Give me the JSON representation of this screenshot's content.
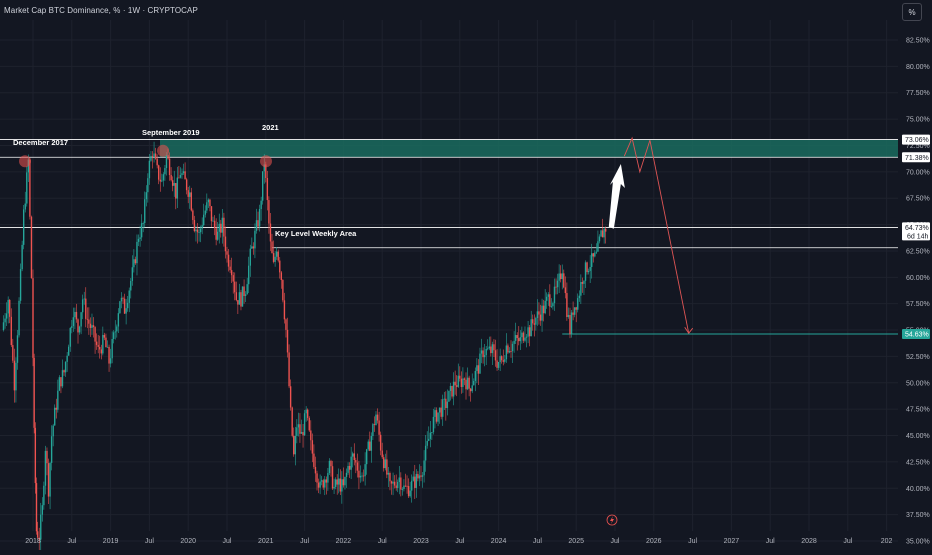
{
  "header": {
    "title": "Market Cap BTC Dominance, % · 1W · CRYPTOCAP",
    "scale_button": "%"
  },
  "colors": {
    "background": "#131722",
    "up": "#26a69a",
    "down": "#ef5350",
    "zone": "#1a6b5e",
    "line": "#ffffff",
    "target_line": "#26a69a",
    "label_green": "#26a69a"
  },
  "chart_data": {
    "type": "candlestick",
    "title": "Market Cap BTC Dominance, % · 1W · CRYPTOCAP",
    "y_axis": {
      "ticks": [
        "82.50%",
        "80.00%",
        "77.50%",
        "75.00%",
        "72.50%",
        "70.00%",
        "67.50%",
        "65.00%",
        "62.50%",
        "60.00%",
        "57.50%",
        "55.00%",
        "52.50%",
        "50.00%",
        "47.50%",
        "45.00%",
        "42.50%",
        "40.00%",
        "37.50%",
        "35.00%"
      ],
      "ylim": [
        35,
        85
      ]
    },
    "x_axis": {
      "ticks": [
        "2018",
        "Jul",
        "2019",
        "Jul",
        "2020",
        "Jul",
        "2021",
        "Jul",
        "2022",
        "Jul",
        "2023",
        "Jul",
        "2024",
        "Jul",
        "2025",
        "Jul",
        "2026",
        "Jul",
        "2027",
        "Jul",
        "2028",
        "Jul",
        "202"
      ],
      "tick_years": [
        2018,
        2018.5,
        2019,
        2019.5,
        2020,
        2020.5,
        2021,
        2021.5,
        2022,
        2022.5,
        2023,
        2023.5,
        2024,
        2024.5,
        2025,
        2025.5,
        2026,
        2026.5,
        2027,
        2027.5,
        2028,
        2028.5,
        2029
      ],
      "xlim": [
        2017.6,
        2029.2
      ]
    },
    "price_path": [
      [
        2017.62,
        55
      ],
      [
        2017.7,
        58
      ],
      [
        2017.78,
        50
      ],
      [
        2017.86,
        60
      ],
      [
        2017.9,
        66
      ],
      [
        2017.96,
        71
      ],
      [
        2018.0,
        60
      ],
      [
        2018.03,
        45
      ],
      [
        2018.06,
        36
      ],
      [
        2018.1,
        35.5
      ],
      [
        2018.14,
        38
      ],
      [
        2018.18,
        44
      ],
      [
        2018.22,
        40
      ],
      [
        2018.26,
        45
      ],
      [
        2018.3,
        47
      ],
      [
        2018.36,
        50
      ],
      [
        2018.42,
        51
      ],
      [
        2018.48,
        54
      ],
      [
        2018.54,
        57
      ],
      [
        2018.6,
        55
      ],
      [
        2018.66,
        58
      ],
      [
        2018.72,
        56
      ],
      [
        2018.78,
        55
      ],
      [
        2018.86,
        53
      ],
      [
        2018.94,
        54
      ],
      [
        2019.0,
        52
      ],
      [
        2019.08,
        55
      ],
      [
        2019.14,
        58
      ],
      [
        2019.2,
        57
      ],
      [
        2019.26,
        59
      ],
      [
        2019.32,
        61
      ],
      [
        2019.38,
        64
      ],
      [
        2019.44,
        65
      ],
      [
        2019.5,
        70
      ],
      [
        2019.56,
        72
      ],
      [
        2019.62,
        70
      ],
      [
        2019.68,
        69
      ],
      [
        2019.74,
        71.5
      ],
      [
        2019.8,
        70
      ],
      [
        2019.86,
        68
      ],
      [
        2019.92,
        70
      ],
      [
        2019.98,
        69
      ],
      [
        2020.04,
        68
      ],
      [
        2020.1,
        65
      ],
      [
        2020.16,
        64
      ],
      [
        2020.22,
        66
      ],
      [
        2020.28,
        67
      ],
      [
        2020.34,
        65
      ],
      [
        2020.4,
        64
      ],
      [
        2020.46,
        65
      ],
      [
        2020.52,
        62
      ],
      [
        2020.58,
        61
      ],
      [
        2020.64,
        58
      ],
      [
        2020.7,
        58
      ],
      [
        2020.76,
        59
      ],
      [
        2020.82,
        62
      ],
      [
        2020.88,
        64
      ],
      [
        2020.94,
        66
      ],
      [
        2021.0,
        71
      ],
      [
        2021.04,
        67
      ],
      [
        2021.08,
        63
      ],
      [
        2021.12,
        61
      ],
      [
        2021.16,
        63
      ],
      [
        2021.22,
        60
      ],
      [
        2021.28,
        55
      ],
      [
        2021.34,
        47
      ],
      [
        2021.38,
        43
      ],
      [
        2021.42,
        46
      ],
      [
        2021.48,
        45
      ],
      [
        2021.54,
        47
      ],
      [
        2021.6,
        44
      ],
      [
        2021.66,
        42
      ],
      [
        2021.72,
        40
      ],
      [
        2021.78,
        41
      ],
      [
        2021.84,
        42
      ],
      [
        2021.9,
        40
      ],
      [
        2021.96,
        40.5
      ],
      [
        2022.02,
        40
      ],
      [
        2022.08,
        42
      ],
      [
        2022.14,
        43
      ],
      [
        2022.2,
        42
      ],
      [
        2022.26,
        41
      ],
      [
        2022.32,
        43
      ],
      [
        2022.38,
        45
      ],
      [
        2022.44,
        47
      ],
      [
        2022.5,
        44
      ],
      [
        2022.56,
        42
      ],
      [
        2022.62,
        40
      ],
      [
        2022.68,
        40.5
      ],
      [
        2022.74,
        41
      ],
      [
        2022.8,
        40
      ],
      [
        2022.86,
        40
      ],
      [
        2022.92,
        40.5
      ],
      [
        2022.98,
        41
      ],
      [
        2023.04,
        42
      ],
      [
        2023.1,
        44
      ],
      [
        2023.16,
        46
      ],
      [
        2023.22,
        47
      ],
      [
        2023.28,
        47.5
      ],
      [
        2023.34,
        48
      ],
      [
        2023.4,
        49
      ],
      [
        2023.46,
        50
      ],
      [
        2023.52,
        50
      ],
      [
        2023.58,
        50.5
      ],
      [
        2023.64,
        49.5
      ],
      [
        2023.7,
        50.5
      ],
      [
        2023.76,
        51.5
      ],
      [
        2023.82,
        53
      ],
      [
        2023.88,
        53
      ],
      [
        2023.94,
        53
      ],
      [
        2024.0,
        52
      ],
      [
        2024.06,
        52
      ],
      [
        2024.12,
        53.5
      ],
      [
        2024.18,
        53.5
      ],
      [
        2024.24,
        54
      ],
      [
        2024.3,
        54
      ],
      [
        2024.36,
        55
      ],
      [
        2024.42,
        55
      ],
      [
        2024.48,
        56
      ],
      [
        2024.54,
        56.5
      ],
      [
        2024.6,
        57
      ],
      [
        2024.66,
        58
      ],
      [
        2024.72,
        58
      ],
      [
        2024.78,
        59
      ],
      [
        2024.84,
        61
      ],
      [
        2024.9,
        57
      ],
      [
        2024.94,
        55
      ],
      [
        2024.98,
        57
      ],
      [
        2025.04,
        58
      ],
      [
        2025.1,
        60
      ],
      [
        2025.16,
        61
      ],
      [
        2025.22,
        61.5
      ],
      [
        2025.28,
        62
      ],
      [
        2025.34,
        64
      ],
      [
        2025.4,
        64.7
      ]
    ],
    "levels": [
      {
        "name": "zone-top",
        "value": 73.06,
        "label": "73.06%"
      },
      {
        "name": "zone-bottom",
        "value": 71.38,
        "label": "71.38%"
      },
      {
        "name": "current-price",
        "value": 64.73,
        "label": "64.73%",
        "countdown": "6d 14h"
      },
      {
        "name": "key-level-bottom",
        "value": 62.8
      },
      {
        "name": "target",
        "value": 54.63,
        "label": "54.63%"
      }
    ],
    "annotations": [
      {
        "text": "December 2017",
        "x": 2017.97,
        "y": 71
      },
      {
        "text": "September 2019",
        "x": 2019.6,
        "y": 72
      },
      {
        "text": "2021",
        "x": 2021.0,
        "y": 71
      },
      {
        "text": "Key Level Weekly Area",
        "x": 2021.1,
        "y": 64.3
      }
    ],
    "forecast_up": [
      [
        2025.42,
        64.8
      ],
      [
        2025.55,
        69.6
      ]
    ],
    "forecast_zigzag": [
      [
        2025.62,
        71.5
      ],
      [
        2025.72,
        73.2
      ],
      [
        2025.82,
        70
      ],
      [
        2025.95,
        73
      ]
    ],
    "forecast_down": [
      [
        2025.95,
        73
      ],
      [
        2026.45,
        54.7
      ]
    ],
    "target_line_start": 2024.82
  }
}
